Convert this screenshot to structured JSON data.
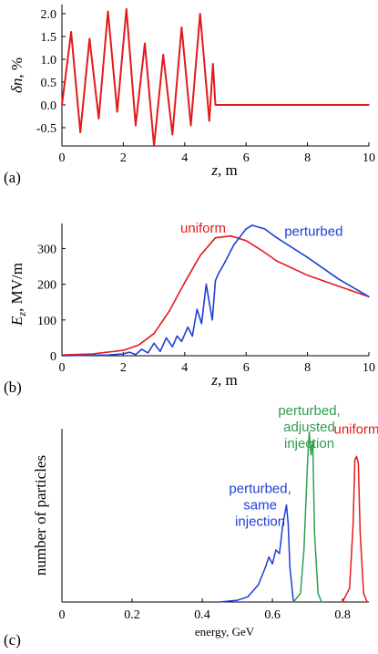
{
  "chart_data": [
    {
      "panel": "(a)",
      "type": "line",
      "xlabel_var": "z",
      "xlabel_unit": ", m",
      "ylabel_var": "δn",
      "ylabel_unit": ", %",
      "xlim": [
        0,
        10
      ],
      "ylim": [
        -0.9,
        2.2
      ],
      "xticks": [
        0,
        2,
        4,
        6,
        8,
        10
      ],
      "yticks": [
        -0.5,
        0.0,
        0.5,
        1.0,
        1.5,
        2.0
      ],
      "ytick_labels": [
        "-0.5",
        "0.0",
        "0.5",
        "1.0",
        "1.5",
        "2.0"
      ],
      "color": "#e31a1c",
      "series": [
        {
          "x": [
            0,
            0.3,
            0.6,
            0.9,
            1.2,
            1.5,
            1.8,
            2.1,
            2.4,
            2.7,
            3.0,
            3.3,
            3.6,
            3.9,
            4.2,
            4.5,
            4.8,
            4.92,
            5.0,
            10.0
          ],
          "values": [
            0,
            1.6,
            -0.6,
            1.45,
            -0.3,
            2.05,
            -0.15,
            2.1,
            -0.45,
            1.35,
            -0.9,
            1.1,
            -0.65,
            1.7,
            -0.45,
            2.0,
            -0.35,
            0.9,
            0,
            0
          ]
        }
      ]
    },
    {
      "panel": "(b)",
      "type": "line",
      "xlabel_var": "z",
      "xlabel_unit": ", m",
      "ylabel_var": "E",
      "ylabel_sub": "z",
      "ylabel_unit": ",  MV/m",
      "xlim": [
        0,
        10
      ],
      "ylim": [
        0,
        370
      ],
      "xticks": [
        0,
        2,
        4,
        6,
        8,
        10
      ],
      "yticks": [
        0,
        100,
        200,
        300
      ],
      "series": [
        {
          "name": "uniform",
          "color": "#e31a1c",
          "label_at": [
            4.6,
            345
          ],
          "x": [
            0,
            1,
            2,
            2.5,
            3,
            3.5,
            4,
            4.5,
            5,
            5.5,
            6,
            6.5,
            7,
            8,
            9,
            10
          ],
          "values": [
            2,
            5,
            15,
            30,
            62,
            125,
            205,
            280,
            330,
            335,
            322,
            295,
            265,
            225,
            195,
            165
          ]
        },
        {
          "name": "perturbed",
          "color": "#1f3fd6",
          "label_at": [
            8.2,
            335
          ],
          "x": [
            0,
            1.5,
            2.0,
            2.2,
            2.4,
            2.6,
            2.8,
            3.0,
            3.2,
            3.4,
            3.6,
            3.75,
            3.9,
            4.1,
            4.25,
            4.4,
            4.55,
            4.7,
            4.82,
            4.9,
            5.0,
            5.1,
            5.3,
            5.6,
            6.0,
            6.2,
            6.6,
            7.0,
            8.0,
            9.0,
            10.0
          ],
          "values": [
            0,
            2,
            5,
            10,
            3,
            18,
            8,
            35,
            12,
            50,
            25,
            55,
            40,
            80,
            55,
            130,
            90,
            200,
            140,
            100,
            210,
            230,
            260,
            310,
            355,
            365,
            355,
            330,
            275,
            215,
            165
          ]
        }
      ]
    },
    {
      "panel": "(c)",
      "type": "line",
      "xlabel": "energy, GeV",
      "ylabel": "number of particles",
      "xlim": [
        0,
        0.875
      ],
      "ylim": [
        0,
        1
      ],
      "xticks": [
        0,
        0.2,
        0.4,
        0.6,
        0.8
      ],
      "xtick_labels": [
        "0",
        "0.2",
        "0.4",
        "0.6",
        "0.8"
      ],
      "series": [
        {
          "name_lines": [
            "perturbed,",
            "same",
            "injection"
          ],
          "color": "#1f3fd6",
          "x": [
            0.45,
            0.5,
            0.53,
            0.56,
            0.58,
            0.59,
            0.6,
            0.61,
            0.62,
            0.63,
            0.64,
            0.645,
            0.65,
            0.66
          ],
          "values": [
            0,
            0.01,
            0.03,
            0.1,
            0.2,
            0.26,
            0.22,
            0.3,
            0.28,
            0.45,
            0.56,
            0.45,
            0.2,
            0
          ]
        },
        {
          "name_lines": [
            "perturbed,",
            "adjusted",
            "injection"
          ],
          "color": "#2e9e4f",
          "x": [
            0.66,
            0.68,
            0.69,
            0.7,
            0.705,
            0.71,
            0.715,
            0.72,
            0.73,
            0.74
          ],
          "values": [
            0,
            0.05,
            0.3,
            0.8,
            0.98,
            0.85,
            0.93,
            0.4,
            0.05,
            0
          ]
        },
        {
          "name_lines": [
            "uniform"
          ],
          "color": "#e31a1c",
          "x": [
            0.8,
            0.82,
            0.83,
            0.835,
            0.84,
            0.845,
            0.85,
            0.86,
            0.87
          ],
          "values": [
            0,
            0.08,
            0.45,
            0.82,
            0.84,
            0.8,
            0.4,
            0.05,
            0
          ]
        }
      ]
    }
  ]
}
